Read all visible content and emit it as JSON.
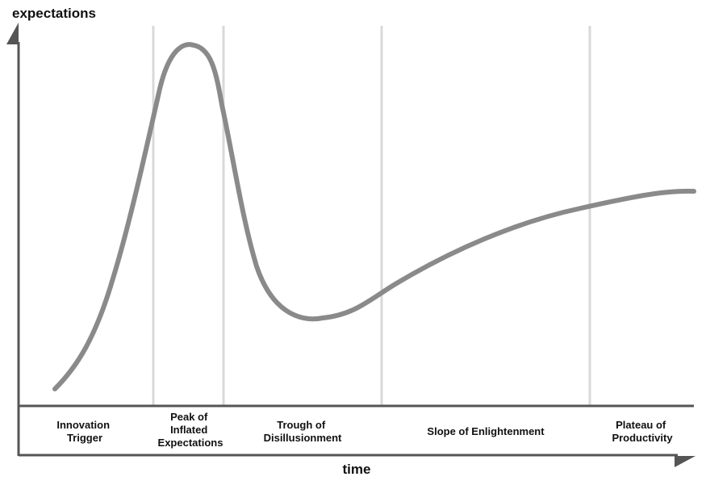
{
  "y_axis_label": "expectations",
  "x_axis_label": "time",
  "colors": {
    "axis": "#555555",
    "curve": "#8a8a8a",
    "divider": "#d9d9d9",
    "text": "#111111"
  },
  "phases": [
    {
      "lines": [
        "Innovation",
        "Trigger"
      ]
    },
    {
      "lines": [
        "Peak of",
        "Inflated",
        "Expectations"
      ]
    },
    {
      "lines": [
        "Trough of",
        "Disillusionment"
      ]
    },
    {
      "lines": [
        "Slope of Enlightenment"
      ]
    },
    {
      "lines": [
        "Plateau of",
        "Productivity"
      ]
    }
  ]
}
